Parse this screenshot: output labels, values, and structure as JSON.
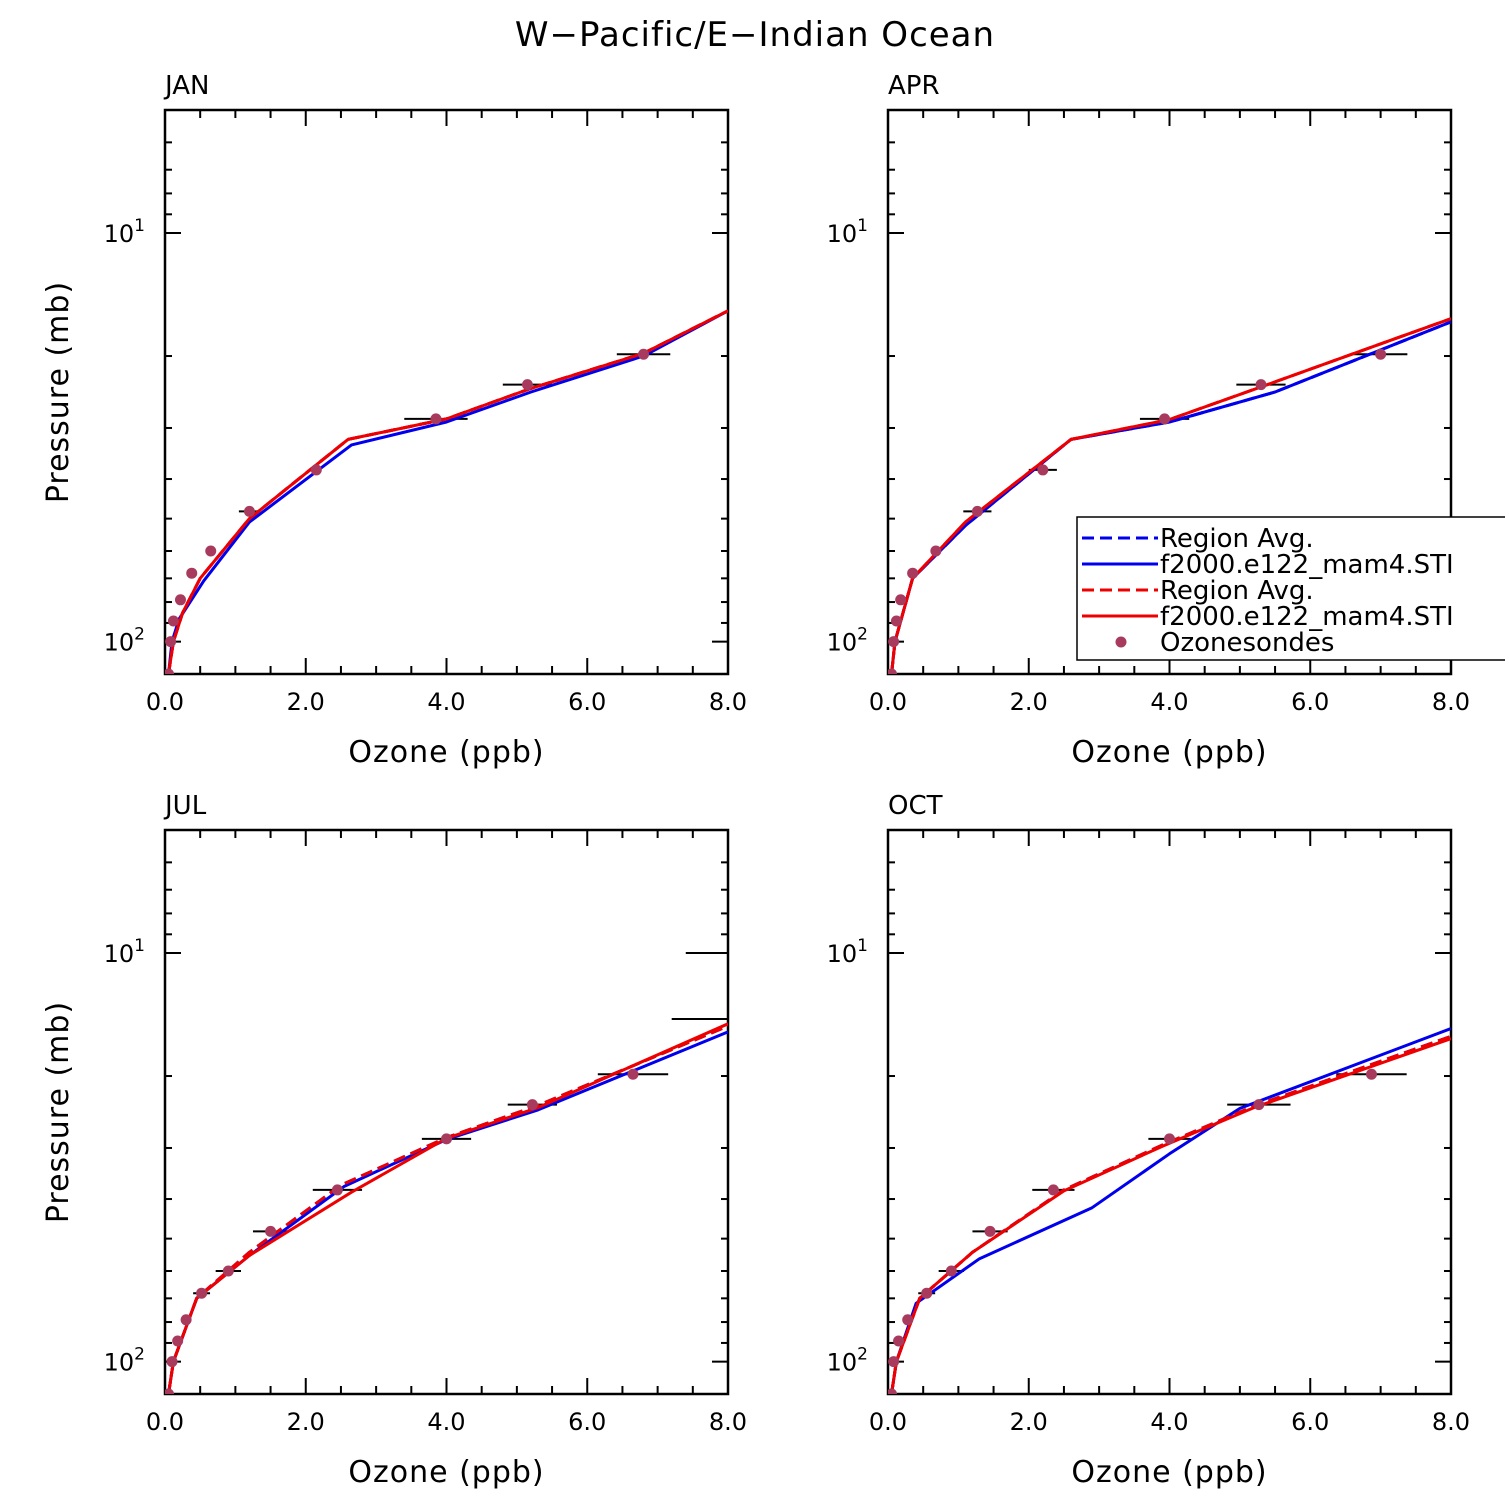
{
  "figure": {
    "title": "W−Pacific/E−Indian Ocean",
    "xlabel": "Ozone (ppb)",
    "ylabel": "Pressure (mb)",
    "x_tick_labels": [
      "0.0",
      "2.0",
      "4.0",
      "6.0",
      "8.0"
    ],
    "y_tick_labels": [
      {
        "base": "10",
        "exp": "1",
        "value": 10
      },
      {
        "base": "10",
        "exp": "2",
        "value": 100
      }
    ]
  },
  "legend": {
    "entries": [
      {
        "label": "Region Avg.",
        "color": "#0000ee",
        "style": "dashed"
      },
      {
        "label": "f2000.e122_mam4.STI",
        "color": "#0000ee",
        "style": "solid"
      },
      {
        "label": "Region Avg.",
        "color": "#ee0000",
        "style": "dashed"
      },
      {
        "label": "f2000.e122_mam4.STI",
        "color": "#ee0000",
        "style": "solid"
      },
      {
        "label": "Ozonesondes",
        "color": "#a83a5e",
        "style": "marker"
      }
    ]
  },
  "chart_data": [
    {
      "type": "line",
      "panel_title": "JAN",
      "xlim": [
        0,
        8
      ],
      "ylim": [
        120,
        5
      ],
      "yscale": "log",
      "series": [
        {
          "color": "#0000ee",
          "style": "dashed",
          "x": [
            0.05,
            0.12,
            0.25,
            0.5,
            1.2,
            2.6,
            4.0,
            5.2,
            6.8,
            8.0
          ],
          "y": [
            120,
            100,
            85,
            70,
            50,
            32,
            28.5,
            24,
            19.7,
            15.5
          ]
        },
        {
          "color": "#0000ee",
          "style": "solid",
          "x": [
            0.05,
            0.1,
            0.2,
            0.55,
            1.2,
            2.65,
            4.0,
            5.2,
            6.8,
            8.0
          ],
          "y": [
            120,
            100,
            88,
            71,
            51,
            33,
            29,
            24.5,
            20,
            15.5
          ]
        },
        {
          "color": "#ee0000",
          "style": "dashed",
          "x": [
            0.05,
            0.12,
            0.25,
            0.5,
            1.2,
            2.6,
            4.0,
            5.2,
            6.8,
            8.0
          ],
          "y": [
            120,
            100,
            85,
            70,
            50,
            32,
            28.5,
            24,
            19.7,
            15.5
          ]
        },
        {
          "color": "#ee0000",
          "style": "solid",
          "x": [
            0.05,
            0.12,
            0.25,
            0.5,
            1.2,
            2.6,
            4.0,
            5.2,
            6.8,
            8.0
          ],
          "y": [
            120,
            100,
            85,
            70,
            50,
            32,
            28.5,
            24,
            19.7,
            15.5
          ]
        }
      ],
      "points": [
        {
          "x": 0.05,
          "y": 120,
          "err": 0
        },
        {
          "x": 0.08,
          "y": 100,
          "err": 0
        },
        {
          "x": 0.12,
          "y": 89,
          "err": 0
        },
        {
          "x": 0.22,
          "y": 79,
          "err": 0
        },
        {
          "x": 0.38,
          "y": 68,
          "err": 0
        },
        {
          "x": 0.65,
          "y": 60,
          "err": 0
        },
        {
          "x": 1.2,
          "y": 48,
          "err": 0.15
        },
        {
          "x": 2.15,
          "y": 38,
          "err": 0
        },
        {
          "x": 3.85,
          "y": 28.5,
          "err": 0.45
        },
        {
          "x": 5.15,
          "y": 23.5,
          "err": 0.35
        },
        {
          "x": 6.8,
          "y": 19.8,
          "err": 0.38
        }
      ]
    },
    {
      "type": "line",
      "panel_title": "APR",
      "xlim": [
        0,
        8
      ],
      "ylim": [
        120,
        5
      ],
      "yscale": "log",
      "series": [
        {
          "color": "#0000ee",
          "style": "dashed",
          "x": [
            0.05,
            0.1,
            0.35,
            1.1,
            2.6,
            4.0,
            5.5,
            8.0
          ],
          "y": [
            120,
            100,
            70,
            52,
            32,
            29,
            24.5,
            16.5
          ]
        },
        {
          "color": "#0000ee",
          "style": "solid",
          "x": [
            0.05,
            0.1,
            0.35,
            1.1,
            2.6,
            4.0,
            5.5,
            8.0
          ],
          "y": [
            120,
            100,
            70,
            52,
            32,
            29,
            24.5,
            16.5
          ]
        },
        {
          "color": "#ee0000",
          "style": "dashed",
          "x": [
            0.05,
            0.1,
            0.35,
            1.1,
            2.6,
            4.0,
            5.3,
            8.0
          ],
          "y": [
            120,
            100,
            70,
            51,
            32,
            28.6,
            23.8,
            16.2
          ]
        },
        {
          "color": "#ee0000",
          "style": "solid",
          "x": [
            0.05,
            0.1,
            0.35,
            1.1,
            2.6,
            4.0,
            5.3,
            8.0
          ],
          "y": [
            120,
            100,
            70,
            51,
            32,
            28.6,
            23.8,
            16.2
          ]
        }
      ],
      "points": [
        {
          "x": 0.05,
          "y": 120,
          "err": 0
        },
        {
          "x": 0.08,
          "y": 100,
          "err": 0
        },
        {
          "x": 0.12,
          "y": 89,
          "err": 0
        },
        {
          "x": 0.18,
          "y": 79,
          "err": 0
        },
        {
          "x": 0.35,
          "y": 68,
          "err": 0
        },
        {
          "x": 0.68,
          "y": 60,
          "err": 0
        },
        {
          "x": 1.27,
          "y": 48,
          "err": 0.2
        },
        {
          "x": 2.2,
          "y": 38,
          "err": 0.2
        },
        {
          "x": 3.93,
          "y": 28.5,
          "err": 0.35
        },
        {
          "x": 5.3,
          "y": 23.5,
          "err": 0.35
        },
        {
          "x": 7.0,
          "y": 19.8,
          "err": 0.38
        }
      ]
    },
    {
      "type": "line",
      "panel_title": "JUL",
      "xlim": [
        0,
        8
      ],
      "ylim": [
        120,
        5
      ],
      "yscale": "log",
      "series": [
        {
          "color": "#0000ee",
          "style": "dashed",
          "x": [
            0.05,
            0.12,
            0.45,
            1.2,
            2.5,
            4.0,
            5.3,
            8.0
          ],
          "y": [
            120,
            100,
            70,
            54,
            37,
            28.3,
            23.6,
            15.1
          ]
        },
        {
          "color": "#0000ee",
          "style": "solid",
          "x": [
            0.05,
            0.12,
            0.45,
            1.2,
            2.55,
            4.0,
            5.3,
            8.0
          ],
          "y": [
            120,
            100,
            70,
            55,
            37.2,
            28.6,
            24.2,
            15.6
          ]
        },
        {
          "color": "#ee0000",
          "style": "dashed",
          "x": [
            0.05,
            0.12,
            0.45,
            1.2,
            2.5,
            4.0,
            5.3,
            8.0
          ],
          "y": [
            120,
            100,
            70,
            54,
            37,
            28.3,
            23.6,
            15.1
          ]
        },
        {
          "color": "#ee0000",
          "style": "solid",
          "x": [
            0.05,
            0.12,
            0.45,
            1.2,
            2.65,
            4.0,
            5.3,
            8.0
          ],
          "y": [
            120,
            100,
            70,
            55,
            38.5,
            28.4,
            23.9,
            14.9
          ]
        }
      ],
      "points": [
        {
          "x": 0.05,
          "y": 120,
          "err": 0
        },
        {
          "x": 0.1,
          "y": 100,
          "err": 0
        },
        {
          "x": 0.18,
          "y": 89,
          "err": 0
        },
        {
          "x": 0.3,
          "y": 79,
          "err": 0
        },
        {
          "x": 0.52,
          "y": 68,
          "err": 0.12
        },
        {
          "x": 0.9,
          "y": 60,
          "err": 0.18
        },
        {
          "x": 1.5,
          "y": 48,
          "err": 0.25
        },
        {
          "x": 2.45,
          "y": 38,
          "err": 0.35
        },
        {
          "x": 4.0,
          "y": 28.5,
          "err": 0.35
        },
        {
          "x": 5.22,
          "y": 23.5,
          "err": 0.35
        },
        {
          "x": 6.65,
          "y": 19.8,
          "err": 0.5
        },
        {
          "x": 7.65,
          "y": 14.5,
          "err": 0.45,
          "no_marker": true
        },
        {
          "x": 7.65,
          "y": 10,
          "err": 0.25,
          "no_marker": true
        }
      ]
    },
    {
      "type": "line",
      "panel_title": "OCT",
      "xlim": [
        0,
        8
      ],
      "ylim": [
        120,
        5
      ],
      "yscale": "log",
      "series": [
        {
          "color": "#0000ee",
          "style": "dashed",
          "x": [
            0.05,
            0.12,
            0.45,
            1.2,
            2.5,
            3.9,
            5.2,
            8.0
          ],
          "y": [
            120,
            100,
            70,
            54,
            38,
            29.5,
            23.7,
            16
          ]
        },
        {
          "color": "#0000ee",
          "style": "solid",
          "x": [
            0.05,
            0.12,
            0.4,
            1.3,
            2.9,
            4.0,
            5.0,
            8.0
          ],
          "y": [
            120,
            100,
            72,
            56,
            42,
            31,
            24,
            15.3
          ]
        },
        {
          "color": "#ee0000",
          "style": "dashed",
          "x": [
            0.05,
            0.12,
            0.45,
            1.2,
            2.5,
            3.9,
            5.2,
            8.0
          ],
          "y": [
            120,
            100,
            70,
            54,
            38,
            29.5,
            23.7,
            16
          ]
        },
        {
          "color": "#ee0000",
          "style": "solid",
          "x": [
            0.05,
            0.12,
            0.45,
            1.2,
            2.5,
            3.9,
            5.2,
            8.0
          ],
          "y": [
            120,
            100,
            70,
            54,
            38.2,
            29.7,
            23.9,
            16.2
          ]
        }
      ],
      "points": [
        {
          "x": 0.05,
          "y": 120,
          "err": 0
        },
        {
          "x": 0.08,
          "y": 100,
          "err": 0
        },
        {
          "x": 0.15,
          "y": 89,
          "err": 0
        },
        {
          "x": 0.28,
          "y": 79,
          "err": 0
        },
        {
          "x": 0.55,
          "y": 68,
          "err": 0.12
        },
        {
          "x": 0.9,
          "y": 60,
          "err": 0.18
        },
        {
          "x": 1.45,
          "y": 48,
          "err": 0.25
        },
        {
          "x": 2.35,
          "y": 38,
          "err": 0.3
        },
        {
          "x": 4.0,
          "y": 28.5,
          "err": 0.3
        },
        {
          "x": 5.27,
          "y": 23.5,
          "err": 0.45
        },
        {
          "x": 6.87,
          "y": 19.8,
          "err": 0.5
        }
      ]
    }
  ]
}
